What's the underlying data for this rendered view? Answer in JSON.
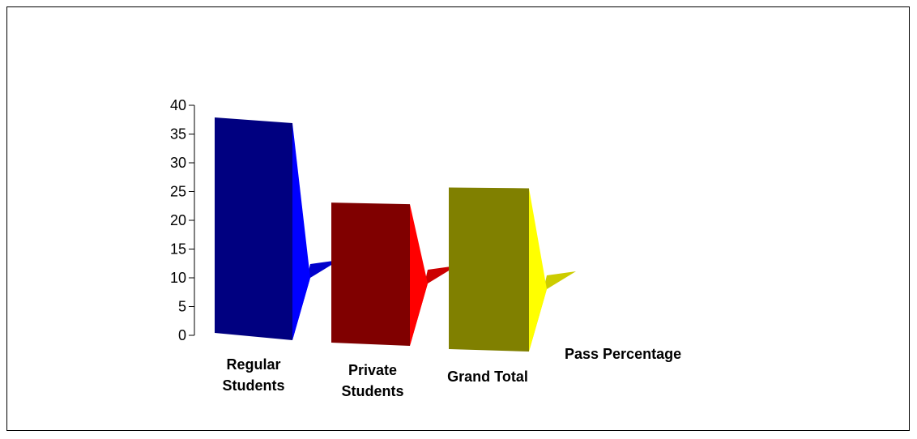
{
  "chart_data": {
    "type": "bar",
    "style": "3d-column",
    "categories": [
      "Regular Students",
      "Private Students",
      "Grand Total"
    ],
    "series": [
      {
        "name": "Pass Percentage",
        "values": [
          38.5,
          24.5,
          28.5
        ]
      }
    ],
    "colors": {
      "front": [
        "#000080",
        "#800000",
        "#808000"
      ],
      "side": [
        "#0000ff",
        "#ff0000",
        "#ffff00"
      ],
      "floor": [
        "#0000cc",
        "#cc0000",
        "#cccc00"
      ]
    },
    "ylim": [
      0,
      40
    ],
    "yticks": [
      0,
      5,
      10,
      15,
      20,
      25,
      30,
      35,
      40
    ],
    "grid": false,
    "legend": "none"
  }
}
